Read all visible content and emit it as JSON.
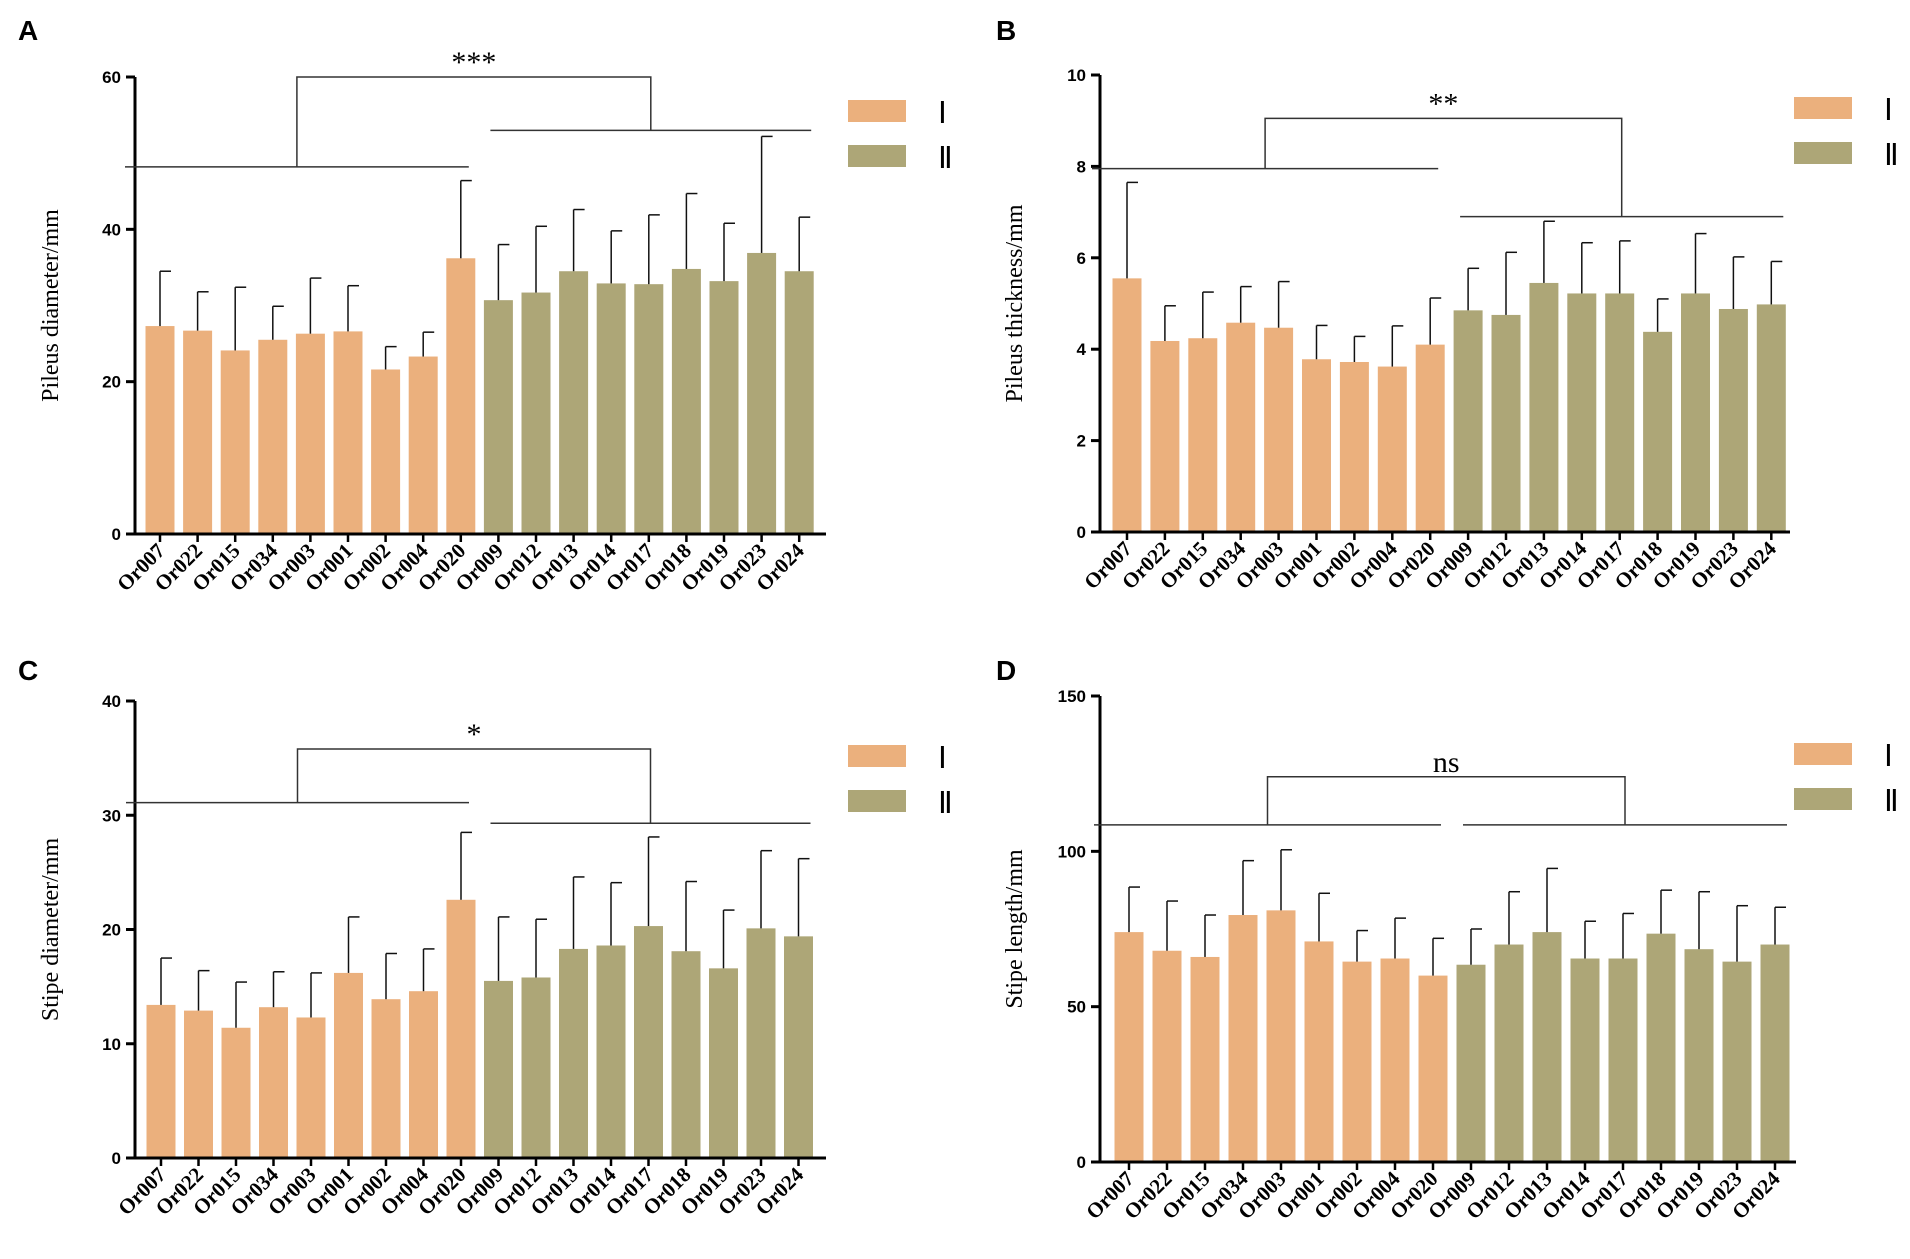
{
  "colors": {
    "group_I": "#EBB07D",
    "group_II": "#ADA677",
    "axis": "#000000",
    "line": "#333333"
  },
  "legend": {
    "group_I_label": "Ⅰ",
    "group_II_label": "Ⅱ"
  },
  "chart_data": [
    {
      "panel": "A",
      "type": "bar",
      "ylabel": "Pileus diameter/mm",
      "ylim": [
        0,
        60
      ],
      "yticks": [
        0,
        20,
        40,
        60
      ],
      "categories": [
        "Or007",
        "Or022",
        "Or015",
        "Or034",
        "Or003",
        "Or001",
        "Or002",
        "Or004",
        "Or020",
        "Or009",
        "Or012",
        "Or013",
        "Or014",
        "Or017",
        "Or018",
        "Or019",
        "Or023",
        "Or024"
      ],
      "groups": [
        "I",
        "I",
        "I",
        "I",
        "I",
        "I",
        "I",
        "I",
        "I",
        "II",
        "II",
        "II",
        "II",
        "II",
        "II",
        "II",
        "II",
        "II"
      ],
      "values": [
        27.3,
        26.7,
        24.1,
        25.5,
        26.3,
        26.6,
        21.6,
        23.3,
        36.2,
        30.7,
        31.7,
        34.5,
        32.9,
        32.8,
        34.8,
        33.2,
        36.9,
        34.5
      ],
      "errors": [
        7.2,
        5.1,
        8.3,
        4.4,
        7.3,
        6.0,
        3.0,
        3.2,
        10.2,
        7.3,
        8.7,
        8.1,
        6.9,
        9.1,
        9.9,
        7.6,
        15.3,
        7.1
      ],
      "significance": {
        "label": "***",
        "group_I_line_y": 48.2,
        "group_II_line_y": 53.0,
        "bracket_top_y": 60.0
      }
    },
    {
      "panel": "B",
      "type": "bar",
      "ylabel": "Pileus thickness/mm",
      "ylim": [
        0,
        10
      ],
      "yticks": [
        0,
        2,
        4,
        6,
        8,
        10
      ],
      "categories": [
        "Or007",
        "Or022",
        "Or015",
        "Or034",
        "Or003",
        "Or001",
        "Or002",
        "Or004",
        "Or020",
        "Or009",
        "Or012",
        "Or013",
        "Or014",
        "Or017",
        "Or018",
        "Or019",
        "Or023",
        "Or024"
      ],
      "groups": [
        "I",
        "I",
        "I",
        "I",
        "I",
        "I",
        "I",
        "I",
        "I",
        "II",
        "II",
        "II",
        "II",
        "II",
        "II",
        "II",
        "II",
        "II"
      ],
      "values": [
        5.55,
        4.18,
        4.24,
        4.58,
        4.47,
        3.78,
        3.72,
        3.62,
        4.1,
        4.85,
        4.75,
        5.45,
        5.22,
        5.22,
        4.38,
        5.22,
        4.88,
        4.98
      ],
      "errors": [
        2.1,
        0.77,
        1.01,
        0.79,
        1.01,
        0.74,
        0.56,
        0.89,
        1.02,
        0.92,
        1.37,
        1.35,
        1.11,
        1.15,
        0.72,
        1.31,
        1.14,
        0.94
      ],
      "significance": {
        "label": "**",
        "group_I_line_y": 7.95,
        "group_II_line_y": 6.9,
        "bracket_top_y": 9.05
      }
    },
    {
      "panel": "C",
      "type": "bar",
      "ylabel": "Stipe diameter/mm",
      "ylim": [
        0,
        40
      ],
      "yticks": [
        0,
        10,
        20,
        30,
        40
      ],
      "categories": [
        "Or007",
        "Or022",
        "Or015",
        "Or034",
        "Or003",
        "Or001",
        "Or002",
        "Or004",
        "Or020",
        "Or009",
        "Or012",
        "Or013",
        "Or014",
        "Or017",
        "Or018",
        "Or019",
        "Or023",
        "Or024"
      ],
      "groups": [
        "I",
        "I",
        "I",
        "I",
        "I",
        "I",
        "I",
        "I",
        "I",
        "II",
        "II",
        "II",
        "II",
        "II",
        "II",
        "II",
        "II",
        "II"
      ],
      "values": [
        13.4,
        12.9,
        11.4,
        13.2,
        12.3,
        16.2,
        13.9,
        14.6,
        22.6,
        15.5,
        15.8,
        18.3,
        18.6,
        20.3,
        18.1,
        16.6,
        20.1,
        19.4
      ],
      "errors": [
        4.1,
        3.5,
        4.0,
        3.1,
        3.9,
        4.9,
        4.0,
        3.7,
        5.9,
        5.6,
        5.1,
        6.3,
        5.5,
        7.8,
        6.1,
        5.1,
        6.8,
        6.8
      ],
      "significance": {
        "label": "*",
        "group_I_line_y": 31.1,
        "group_II_line_y": 29.3,
        "bracket_top_y": 35.8
      }
    },
    {
      "panel": "D",
      "type": "bar",
      "ylabel": "Stipe length/mm",
      "ylim": [
        0,
        150
      ],
      "yticks": [
        0,
        50,
        100,
        150
      ],
      "categories": [
        "Or007",
        "Or022",
        "Or015",
        "Or034",
        "Or003",
        "Or001",
        "Or002",
        "Or004",
        "Or020",
        "Or009",
        "Or012",
        "Or013",
        "Or014",
        "Or017",
        "Or018",
        "Or019",
        "Or023",
        "Or024"
      ],
      "groups": [
        "I",
        "I",
        "I",
        "I",
        "I",
        "I",
        "I",
        "I",
        "I",
        "II",
        "II",
        "II",
        "II",
        "II",
        "II",
        "II",
        "II",
        "II"
      ],
      "values": [
        74.0,
        68.0,
        66.0,
        79.5,
        81.0,
        71.0,
        64.5,
        65.5,
        60.0,
        63.5,
        70.0,
        74.0,
        65.5,
        65.5,
        73.5,
        68.5,
        64.5,
        70.0
      ],
      "errors": [
        14.5,
        16.0,
        13.5,
        17.5,
        19.5,
        15.5,
        10.0,
        13.0,
        12.0,
        11.5,
        17.0,
        20.5,
        12.0,
        14.5,
        14.0,
        18.5,
        18.0,
        12.0
      ],
      "significance": {
        "label": "ns",
        "group_I_line_y": 108.5,
        "group_II_line_y": 108.5,
        "bracket_top_y": 124.0
      }
    }
  ]
}
